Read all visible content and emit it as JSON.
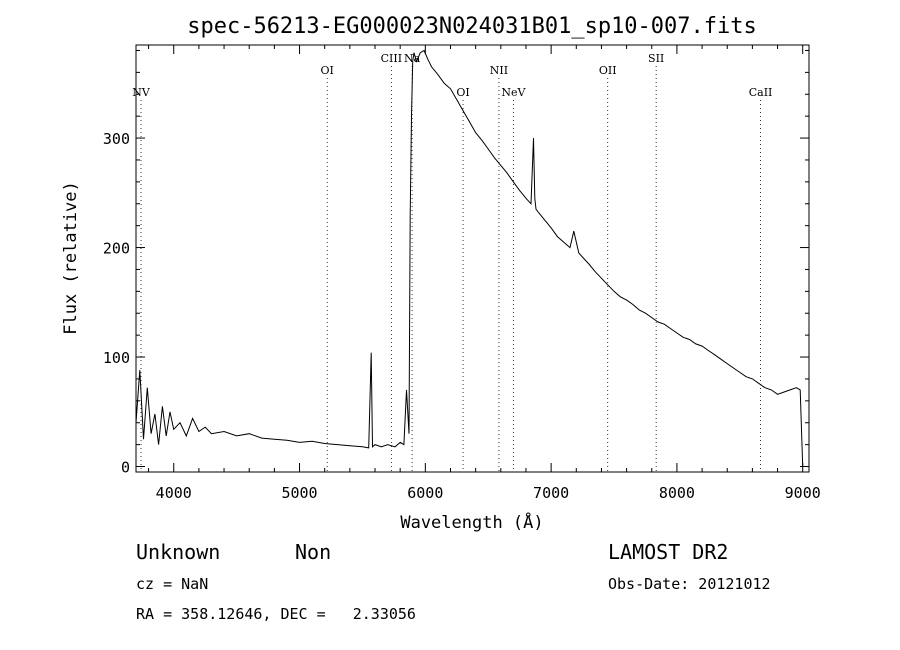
{
  "chart_data": {
    "type": "line",
    "title": "spec-56213-EG000023N024031B01_sp10-007.fits",
    "xlabel": "Wavelength (Å)",
    "ylabel": "Flux (relative)",
    "xlim": [
      3700,
      9050
    ],
    "ylim": [
      -5,
      385
    ],
    "xticks": [
      4000,
      5000,
      6000,
      7000,
      8000,
      9000
    ],
    "yticks": [
      0,
      100,
      200,
      300
    ],
    "grid": false,
    "series": [
      {
        "x": [
          3700,
          3730,
          3760,
          3790,
          3820,
          3850,
          3880,
          3910,
          3940,
          3970,
          4000,
          4050,
          4100,
          4150,
          4200,
          4250,
          4300,
          4400,
          4500,
          4600,
          4700,
          4800,
          4900,
          5000,
          5100,
          5200,
          5300,
          5400,
          5500,
          5550,
          5570,
          5580,
          5600,
          5650,
          5700,
          5760,
          5800,
          5830,
          5850,
          5870,
          5880,
          5890,
          5900,
          5910,
          5930,
          5960,
          5990,
          6020,
          6050,
          6100,
          6150,
          6200,
          6250,
          6300,
          6350,
          6400,
          6450,
          6500,
          6550,
          6600,
          6650,
          6700,
          6750,
          6800,
          6840,
          6860,
          6870,
          6880,
          6900,
          6950,
          7000,
          7050,
          7100,
          7150,
          7180,
          7200,
          7220,
          7260,
          7300,
          7350,
          7400,
          7450,
          7500,
          7550,
          7600,
          7650,
          7700,
          7750,
          7800,
          7850,
          7900,
          7950,
          8000,
          8050,
          8100,
          8150,
          8200,
          8250,
          8300,
          8350,
          8400,
          8450,
          8500,
          8550,
          8600,
          8650,
          8700,
          8750,
          8800,
          8850,
          8900,
          8950,
          8980,
          9000
        ],
        "y": [
          40,
          88,
          25,
          72,
          30,
          48,
          20,
          55,
          28,
          50,
          34,
          40,
          28,
          44,
          32,
          36,
          30,
          32,
          28,
          30,
          26,
          25,
          24,
          22,
          23,
          21,
          20,
          19,
          18,
          17,
          104,
          18,
          20,
          18,
          20,
          18,
          22,
          20,
          70,
          30,
          230,
          320,
          370,
          378,
          370,
          378,
          380,
          372,
          365,
          358,
          350,
          345,
          335,
          325,
          315,
          305,
          298,
          290,
          282,
          275,
          268,
          260,
          252,
          245,
          240,
          300,
          245,
          235,
          232,
          225,
          218,
          210,
          205,
          200,
          215,
          205,
          195,
          190,
          185,
          178,
          172,
          166,
          160,
          155,
          152,
          148,
          143,
          140,
          136,
          132,
          130,
          126,
          122,
          118,
          116,
          112,
          110,
          106,
          102,
          98,
          94,
          90,
          86,
          82,
          80,
          76,
          72,
          70,
          66,
          68,
          70,
          72,
          70,
          0
        ]
      }
    ],
    "line_markers": [
      {
        "label": "NV",
        "x": 3740,
        "row": 3
      },
      {
        "label": "OI",
        "x": 5220,
        "row": 1
      },
      {
        "label": "CIII",
        "x": 5730,
        "row": 0
      },
      {
        "label": "Na",
        "x": 5895,
        "row": 0
      },
      {
        "label": "OI",
        "x": 6300,
        "row": 3
      },
      {
        "label": "NII",
        "x": 6585,
        "row": 1
      },
      {
        "label": "NeV",
        "x": 6700,
        "row": 3
      },
      {
        "label": "OII",
        "x": 7450,
        "row": 1
      },
      {
        "label": "SII",
        "x": 7835,
        "row": 0
      },
      {
        "label": "CaII",
        "x": 8665,
        "row": 3
      }
    ]
  },
  "info": {
    "class": "Unknown",
    "subclass": "Non",
    "survey": "LAMOST DR2",
    "cz": "cz = NaN",
    "obs_date": "Obs-Date: 20121012",
    "coords": "RA = 358.12646, DEC =   2.33056"
  }
}
